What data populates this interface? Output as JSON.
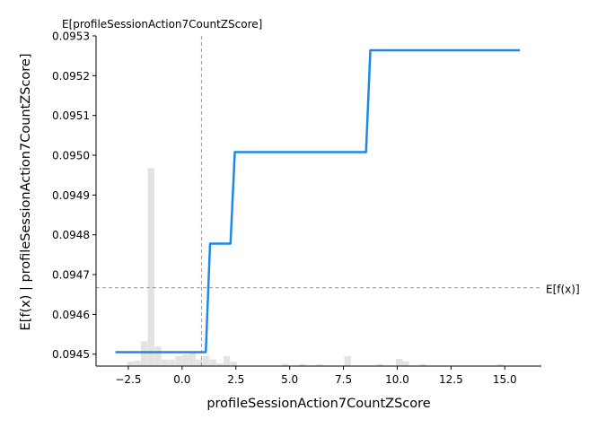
{
  "chart_data": {
    "type": "line",
    "xlabel": "profileSessionAction7CountZScore",
    "ylabel": "E[f(x) | profileSessionAction7CountZScore]",
    "xlim": [
      -4.0,
      16.7
    ],
    "ylim": [
      0.09447,
      0.0953
    ],
    "x_ticks": [
      -2.5,
      0.0,
      2.5,
      5.0,
      7.5,
      10.0,
      12.5,
      15.0
    ],
    "x_tick_labels": [
      "−2.5",
      "0.0",
      "2.5",
      "5.0",
      "7.5",
      "10.0",
      "12.5",
      "15.0"
    ],
    "y_ticks": [
      0.0945,
      0.0946,
      0.0947,
      0.0948,
      0.0949,
      0.095,
      0.0951,
      0.0952,
      0.0953
    ],
    "y_tick_labels": [
      "0.0945",
      "0.0946",
      "0.0947",
      "0.0948",
      "0.0949",
      "0.0950",
      "0.0951",
      "0.0952",
      "0.0953"
    ],
    "grid": false,
    "series": [
      {
        "color": "#1e88e5",
        "x": [
          -3.1,
          1.1,
          1.3,
          2.25,
          2.45,
          8.55,
          8.75,
          15.7
        ],
        "y": [
          0.094505,
          0.094505,
          0.094778,
          0.094778,
          0.095008,
          0.095008,
          0.095264,
          0.095264
        ]
      }
    ],
    "reference_lines": {
      "vertical_x": 0.9,
      "vertical_label": "E[profileSessionAction7CountZScore]",
      "horizontal_y": 0.094667,
      "horizontal_label": "E[f(x)]",
      "color": "#999999"
    },
    "histogram": {
      "color": "#cccccc",
      "bin_width": 0.32,
      "bins": [
        {
          "x": -2.4,
          "h": 0.014
        },
        {
          "x": -2.08,
          "h": 0.016
        },
        {
          "x": -1.76,
          "h": 0.075
        },
        {
          "x": -1.44,
          "h": 0.6
        },
        {
          "x": -1.12,
          "h": 0.06
        },
        {
          "x": -0.8,
          "h": 0.02
        },
        {
          "x": -0.48,
          "h": 0.02
        },
        {
          "x": -0.16,
          "h": 0.03
        },
        {
          "x": 0.16,
          "h": 0.035
        },
        {
          "x": 0.48,
          "h": 0.04
        },
        {
          "x": 0.8,
          "h": 0.02
        },
        {
          "x": 1.12,
          "h": 0.03
        },
        {
          "x": 1.44,
          "h": 0.02
        },
        {
          "x": 1.76,
          "h": 0.008
        },
        {
          "x": 2.08,
          "h": 0.03
        },
        {
          "x": 2.4,
          "h": 0.013
        },
        {
          "x": 4.8,
          "h": 0.007
        },
        {
          "x": 5.6,
          "h": 0.006
        },
        {
          "x": 6.4,
          "h": 0.006
        },
        {
          "x": 7.7,
          "h": 0.03
        },
        {
          "x": 9.2,
          "h": 0.006
        },
        {
          "x": 10.1,
          "h": 0.022
        },
        {
          "x": 10.4,
          "h": 0.015
        },
        {
          "x": 11.2,
          "h": 0.006
        },
        {
          "x": 14.8,
          "h": 0.006
        }
      ]
    }
  }
}
